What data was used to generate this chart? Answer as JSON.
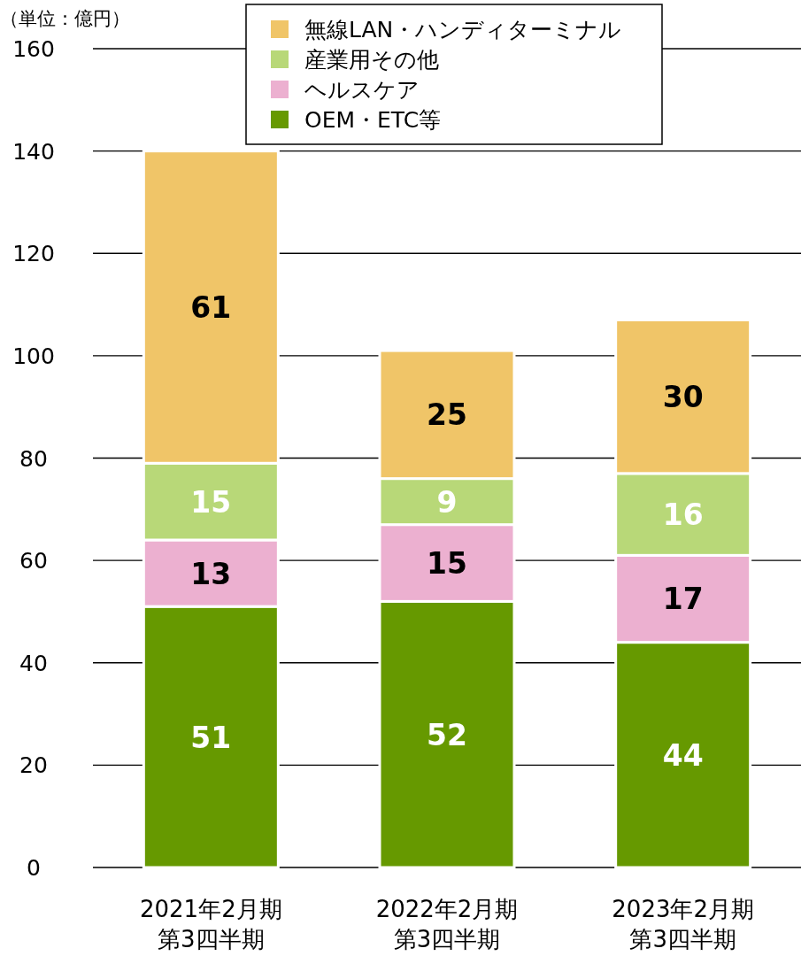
{
  "chart_data": {
    "type": "bar",
    "stacked": true,
    "ylabel": "（単位：億円）",
    "categories": [
      "2021年2月期第3四半期",
      "2022年2月期第3四半期",
      "2023年2月期第3四半期"
    ],
    "series": [
      {
        "name": "OEM・ETC等",
        "color": "#669900",
        "values": [
          51,
          52,
          44
        ]
      },
      {
        "name": "ヘルスケア",
        "color": "#ecb0d0",
        "values": [
          13,
          15,
          17
        ]
      },
      {
        "name": "産業用その他",
        "color": "#b8d878",
        "values": [
          15,
          9,
          16
        ]
      },
      {
        "name": "無線LAN・ハンディターミナル",
        "color": "#f0c568",
        "values": [
          61,
          25,
          30
        ]
      }
    ],
    "ylim": [
      0,
      160
    ],
    "yticks": [
      0,
      20,
      40,
      60,
      80,
      100,
      120,
      140,
      160
    ],
    "grid": "y",
    "legend": "top",
    "data_labels": true
  }
}
